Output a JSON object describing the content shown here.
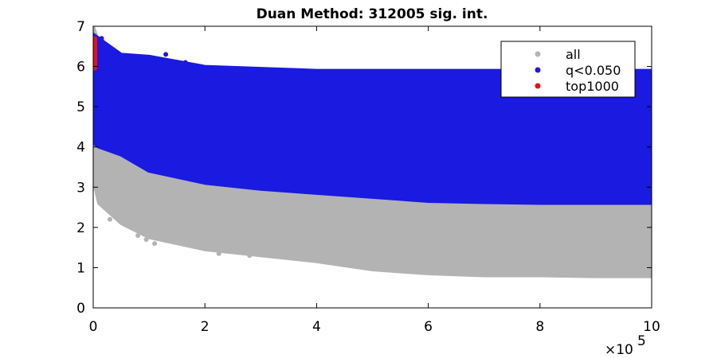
{
  "chart_data": {
    "type": "scatter",
    "title": "Duan Method: 312005 sig. int.",
    "xlabel": "",
    "ylabel": "",
    "xlim": [
      0,
      1000000
    ],
    "ylim": [
      0,
      7
    ],
    "x_ticks": [
      0,
      200000,
      400000,
      600000,
      800000,
      1000000
    ],
    "x_tick_labels": [
      "0",
      "2",
      "4",
      "6",
      "8",
      "10"
    ],
    "x_exponent_label": "×10",
    "x_exponent": "5",
    "y_ticks": [
      0,
      1,
      2,
      3,
      4,
      5,
      6,
      7
    ],
    "y_tick_labels": [
      "0",
      "1",
      "2",
      "3",
      "4",
      "5",
      "6",
      "7"
    ],
    "grid": false,
    "legend_position": "top-right",
    "series": [
      {
        "name": "all",
        "color": "#b3b3b3",
        "region_x": [
          0,
          10000,
          50000,
          100000,
          200000,
          300000,
          400000,
          500000,
          600000,
          700000,
          800000,
          900000,
          1000000
        ],
        "region_lower": [
          3.2,
          2.6,
          2.1,
          1.75,
          1.45,
          1.3,
          1.15,
          0.95,
          0.85,
          0.8,
          0.8,
          0.78,
          0.78
        ],
        "region_upper": [
          7.0,
          6.6,
          5.0,
          4.3,
          3.7,
          3.4,
          3.15,
          3.0,
          2.8,
          2.7,
          2.65,
          2.62,
          2.6
        ],
        "outliers": [
          {
            "x": 20000,
            "y": 2.5
          },
          {
            "x": 30000,
            "y": 2.2
          },
          {
            "x": 80000,
            "y": 1.8
          },
          {
            "x": 95000,
            "y": 1.7
          },
          {
            "x": 110000,
            "y": 1.6
          },
          {
            "x": 225000,
            "y": 1.35
          },
          {
            "x": 280000,
            "y": 1.3
          }
        ]
      },
      {
        "name": "q<0.050",
        "color": "#1a1ae0",
        "region_x": [
          0,
          10000,
          50000,
          100000,
          200000,
          300000,
          400000,
          500000,
          600000,
          700000,
          800000,
          900000,
          1000000
        ],
        "region_lower": [
          4.1,
          4.0,
          3.8,
          3.4,
          3.1,
          2.95,
          2.85,
          2.75,
          2.65,
          2.62,
          2.6,
          2.6,
          2.6
        ],
        "region_upper": [
          6.8,
          6.7,
          6.3,
          6.25,
          6.0,
          5.95,
          5.9,
          5.9,
          5.9,
          5.9,
          5.9,
          5.9,
          5.9
        ],
        "outliers": [
          {
            "x": 8000,
            "y": 6.7
          },
          {
            "x": 15000,
            "y": 6.7
          },
          {
            "x": 130000,
            "y": 6.3
          },
          {
            "x": 165000,
            "y": 6.1
          },
          {
            "x": 400000,
            "y": 5.4
          },
          {
            "x": 995000,
            "y": 5.8
          }
        ]
      },
      {
        "name": "top1000",
        "color": "#e81010",
        "region_x": [
          0,
          1500,
          3000
        ],
        "region_lower": [
          5.9,
          5.9,
          5.9
        ],
        "region_upper": [
          6.75,
          6.75,
          6.75
        ],
        "outliers": []
      }
    ]
  }
}
